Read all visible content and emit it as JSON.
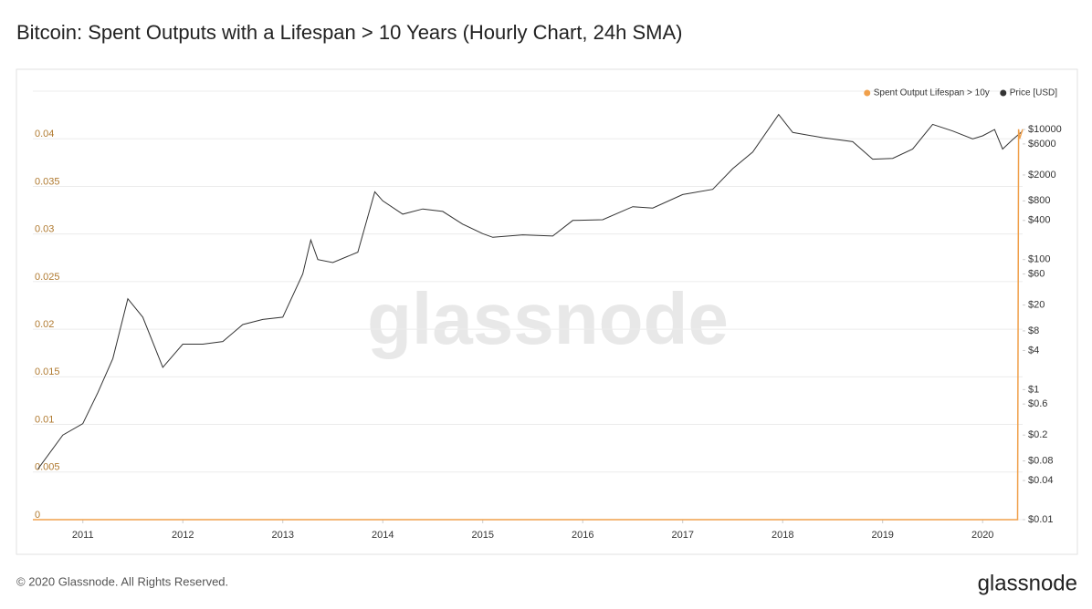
{
  "title": "Bitcoin: Spent Outputs with a Lifespan > 10 Years (Hourly Chart, 24h SMA)",
  "footer": "© 2020 Glassnode. All Rights Reserved.",
  "logo": "glassnode",
  "chart_data": {
    "type": "line",
    "watermark": "glassnode",
    "xlim": [
      2010.5,
      2020.4
    ],
    "xticks": [
      2011,
      2012,
      2013,
      2014,
      2015,
      2016,
      2017,
      2018,
      2019,
      2020
    ],
    "ylim": [
      0,
      0.045
    ],
    "yticks": [
      0,
      0.005,
      0.01,
      0.015,
      0.02,
      0.025,
      0.03,
      0.035,
      0.04
    ],
    "y2log": true,
    "y2lim": [
      0.01,
      38900
    ],
    "y2ticks": [
      {
        "value": 10000,
        "label": "$10000"
      },
      {
        "value": 6000,
        "label": "$6000"
      },
      {
        "value": 2000,
        "label": "$2000"
      },
      {
        "value": 800,
        "label": "$800"
      },
      {
        "value": 400,
        "label": "$400"
      },
      {
        "value": 100,
        "label": "$100"
      },
      {
        "value": 60,
        "label": "$60"
      },
      {
        "value": 20,
        "label": "$20"
      },
      {
        "value": 8,
        "label": "$8"
      },
      {
        "value": 4,
        "label": "$4"
      },
      {
        "value": 1,
        "label": "$1"
      },
      {
        "value": 0.6,
        "label": "$0.6"
      },
      {
        "value": 0.2,
        "label": "$0.2"
      },
      {
        "value": 0.08,
        "label": "$0.08"
      },
      {
        "value": 0.04,
        "label": "$0.04"
      },
      {
        "value": 0.01,
        "label": "$0.01"
      }
    ],
    "grid": true,
    "legend": "top-right",
    "series": [
      {
        "name": "Spent Output Lifespan > 10y",
        "color": "#f0a04b",
        "axis": "y",
        "x": [
          2010.5,
          2020.35,
          2020.36,
          2020.37,
          2020.4
        ],
        "values": [
          0,
          0,
          0.041,
          0.04,
          0.041
        ]
      },
      {
        "name": "Price [USD]",
        "color": "#333333",
        "axis": "y2",
        "x": [
          2010.55,
          2010.8,
          2011.0,
          2011.15,
          2011.3,
          2011.45,
          2011.6,
          2011.8,
          2012.0,
          2012.2,
          2012.4,
          2012.6,
          2012.8,
          2013.0,
          2013.2,
          2013.28,
          2013.35,
          2013.5,
          2013.75,
          2013.92,
          2014.0,
          2014.2,
          2014.4,
          2014.6,
          2014.8,
          2015.0,
          2015.1,
          2015.4,
          2015.7,
          2015.9,
          2016.2,
          2016.5,
          2016.7,
          2017.0,
          2017.3,
          2017.5,
          2017.7,
          2017.96,
          2018.1,
          2018.4,
          2018.7,
          2018.9,
          2019.1,
          2019.3,
          2019.5,
          2019.7,
          2019.9,
          2020.0,
          2020.12,
          2020.2,
          2020.3,
          2020.4
        ],
        "values": [
          0.06,
          0.2,
          0.3,
          0.9,
          3,
          25,
          13,
          2.2,
          5,
          5,
          5.5,
          10,
          12,
          13,
          60,
          200,
          100,
          90,
          130,
          1100,
          800,
          500,
          600,
          550,
          350,
          250,
          220,
          240,
          230,
          400,
          410,
          650,
          620,
          1000,
          1200,
          2500,
          4500,
          17000,
          9000,
          7500,
          6500,
          3500,
          3600,
          5000,
          12000,
          9500,
          7200,
          8000,
          10000,
          5000,
          7000,
          9500
        ]
      }
    ]
  }
}
